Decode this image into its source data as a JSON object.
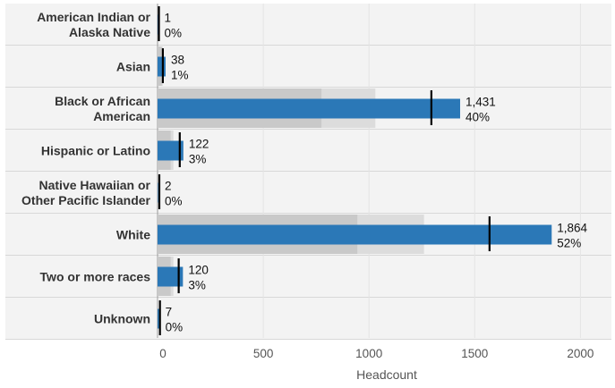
{
  "chart_data": {
    "type": "bar",
    "orientation": "horizontal",
    "xlabel": "Headcount",
    "xlim": [
      0,
      2100
    ],
    "xticks": [
      0,
      500,
      1000,
      1500,
      2000
    ],
    "xtick_labels": [
      "0",
      "500",
      "1000",
      "1500",
      "2000"
    ],
    "categories": [
      [
        "American Indian or",
        "Alaska Native"
      ],
      [
        "Asian"
      ],
      [
        "Black or African",
        "American"
      ],
      [
        "Hispanic or Latino"
      ],
      [
        "Native Hawaiian or",
        "Other Pacific Islander"
      ],
      [
        "White"
      ],
      [
        "Two or more races"
      ],
      [
        "Unknown"
      ]
    ],
    "values": [
      1,
      38,
      1431,
      122,
      2,
      1864,
      120,
      7
    ],
    "value_labels": [
      "1",
      "38",
      "1,431",
      "122",
      "2",
      "1,864",
      "120",
      "7"
    ],
    "percent_labels": [
      "0%",
      "1%",
      "40%",
      "3%",
      "0%",
      "52%",
      "3%",
      "0%"
    ],
    "reference_markers": [
      0,
      25,
      1295,
      105,
      2,
      1570,
      100,
      5
    ],
    "band_inner": [
      0,
      20,
      775,
      62,
      0,
      945,
      62,
      3
    ],
    "band_outer": [
      0,
      25,
      1030,
      75,
      0,
      1260,
      75,
      4
    ],
    "grid": true,
    "colors": {
      "bar": "#2b78b7",
      "row_background": "#f0f0f0",
      "band_inner": "#c9c9c9",
      "band_outer": "#dcdcdc",
      "marker": "#000000",
      "separator": "#d8d8d8"
    }
  }
}
